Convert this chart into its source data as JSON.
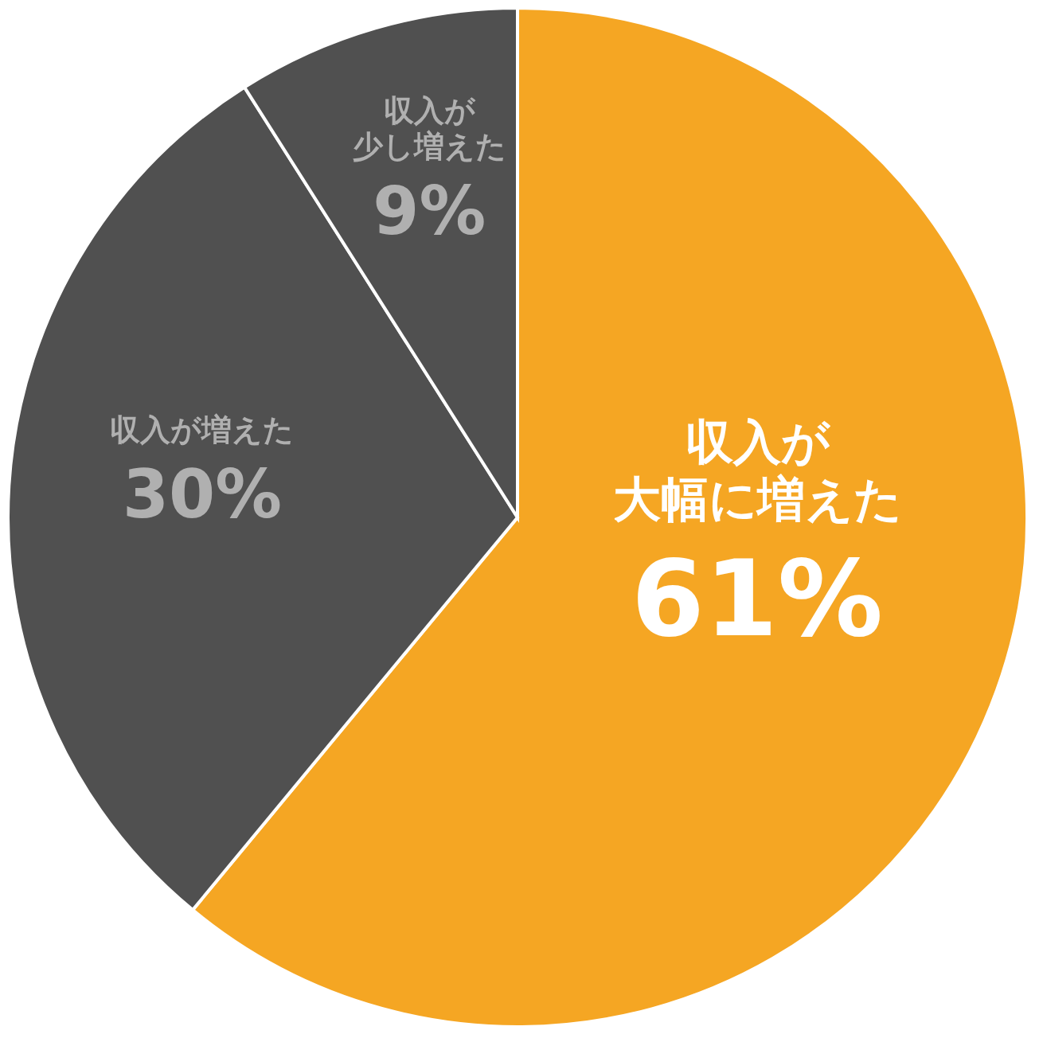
{
  "chart_data": {
    "type": "pie",
    "categories": [
      "収入が大幅に増えた",
      "収入が増えた",
      "収入が少し増えた"
    ],
    "values": [
      61,
      30,
      9
    ],
    "colors": [
      "#f5a623",
      "#505050",
      "#505050"
    ],
    "value_labels": [
      "61%",
      "30%",
      "9%"
    ]
  }
}
